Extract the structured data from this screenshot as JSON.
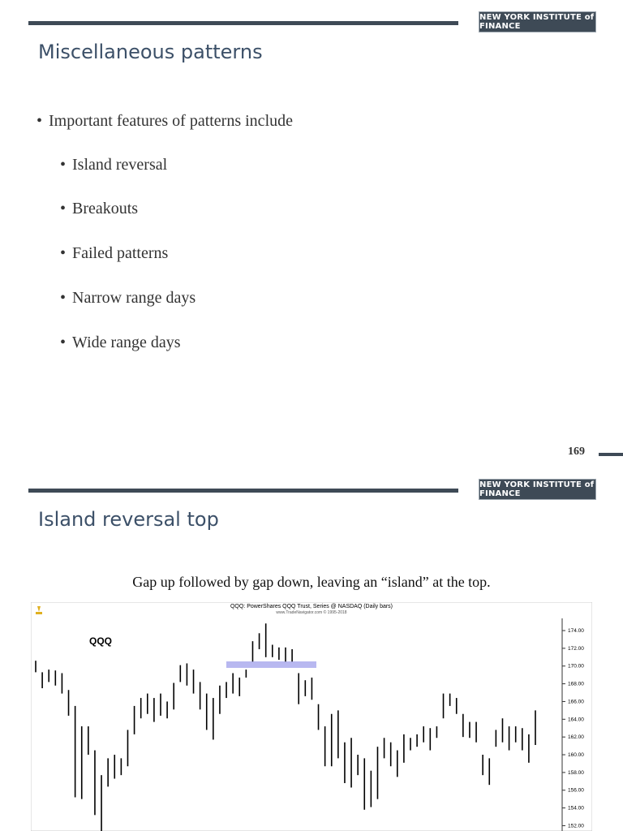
{
  "slides": [
    {
      "header": {
        "logo": "NEW YORK INSTITUTE of FINANCE"
      },
      "title": "Miscellaneous patterns",
      "bullets": [
        {
          "text": "Important features of patterns include",
          "level": 1
        },
        {
          "text": "Island reversal",
          "level": 2
        },
        {
          "text": "Breakouts",
          "level": 2
        },
        {
          "text": "Failed patterns",
          "level": 2
        },
        {
          "text": "Narrow range days",
          "level": 2
        },
        {
          "text": "Wide range days",
          "level": 2
        }
      ],
      "page_number": "169"
    },
    {
      "header": {
        "logo": "NEW YORK INSTITUTE of FINANCE"
      },
      "title": "Island reversal top",
      "caption": "Gap up followed by gap down, leaving an “island” at the top.",
      "chart": {
        "type": "ohlc",
        "title": "QQQ: PowerShares QQQ Trust, Series @ NASDAQ (Daily bars)",
        "source": "www.TradeNavigator.com © 1995-2018",
        "symbol": "QQQ",
        "high": [
          170.6,
          169.3,
          169.6,
          169.5,
          169.2,
          167.3,
          165.5,
          163.2,
          163.2,
          160.5,
          157.7,
          159.6,
          160.0,
          159.6,
          162.8,
          165.5,
          166.4,
          166.9,
          166.4,
          166.9,
          166.0,
          168.1,
          170.1,
          170.3,
          169.6,
          168.2,
          166.9,
          166.4,
          167.8,
          168.2,
          169.2,
          168.7,
          169.6,
          172.8,
          173.7,
          174.8,
          172.4,
          172.1,
          172.1,
          171.9,
          169.2,
          168.4,
          168.7,
          165.7,
          163.2,
          164.6,
          165.0,
          161.4,
          161.9,
          160.0,
          159.6,
          158.2,
          160.9,
          161.9,
          161.4,
          160.5,
          162.3,
          161.9,
          162.3,
          163.2,
          163.0,
          163.2,
          166.9,
          166.9,
          166.4,
          164.6,
          163.7,
          163.7,
          160.0,
          159.6,
          162.8,
          164.1,
          163.2,
          163.2,
          163.0,
          162.3,
          165.0
        ],
        "low": [
          169.3,
          167.5,
          168.2,
          167.8,
          166.9,
          164.4,
          155.2,
          155.0,
          160.0,
          153.2,
          151.4,
          156.4,
          157.3,
          157.7,
          158.7,
          162.3,
          164.1,
          164.6,
          163.7,
          164.4,
          164.1,
          165.1,
          168.2,
          167.8,
          166.9,
          165.1,
          162.8,
          161.7,
          164.6,
          166.4,
          166.9,
          166.6,
          168.7,
          170.5,
          171.9,
          171.0,
          171.0,
          170.7,
          170.5,
          170.5,
          165.7,
          166.6,
          166.2,
          162.8,
          158.7,
          158.7,
          159.6,
          156.8,
          156.3,
          157.7,
          153.8,
          154.1,
          155.0,
          159.6,
          158.7,
          157.5,
          159.1,
          160.5,
          160.9,
          161.4,
          160.5,
          161.9,
          164.1,
          165.5,
          164.6,
          162.0,
          161.9,
          161.4,
          157.7,
          156.6,
          160.9,
          161.4,
          160.5,
          161.4,
          160.5,
          159.1,
          161.1
        ],
        "ylim": [
          151.4,
          175.1
        ],
        "yticks": [
          {
            "value": 174,
            "label": "174.00"
          },
          {
            "value": 172,
            "label": "172.00"
          },
          {
            "value": 170,
            "label": "170.00"
          },
          {
            "value": 168,
            "label": "168.00"
          },
          {
            "value": 166,
            "label": "166.00"
          },
          {
            "value": 164,
            "label": "164.00"
          },
          {
            "value": 162,
            "label": "162.00"
          },
          {
            "value": 160,
            "label": "160.00"
          },
          {
            "value": 158,
            "label": "158.00"
          },
          {
            "value": 156,
            "label": "156.00"
          },
          {
            "value": 154,
            "label": "154.00"
          },
          {
            "value": 152,
            "label": "152.00"
          }
        ]
      }
    }
  ]
}
